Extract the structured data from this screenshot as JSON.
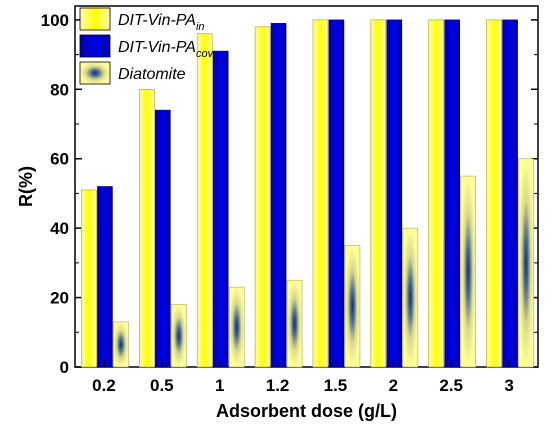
{
  "chart_data": {
    "type": "bar",
    "title": "",
    "xlabel": "Adsorbent dose (g/L)",
    "ylabel": "R(%)",
    "categories": [
      "0.2",
      "0.5",
      "1",
      "1.2",
      "1.5",
      "2",
      "2.5",
      "3"
    ],
    "ylim": [
      0,
      104
    ],
    "yticks": [
      0,
      20,
      40,
      60,
      80,
      100
    ],
    "series": [
      {
        "name": "DIT-Vin-PA",
        "subscript": "in",
        "color": "#ffff00",
        "values": [
          51,
          80,
          96,
          98,
          100,
          100,
          100,
          100
        ]
      },
      {
        "name": "DIT-Vin-PA",
        "subscript": "cov",
        "color": "#0000d4",
        "values": [
          52,
          74,
          91,
          99,
          100,
          100,
          100,
          100
        ]
      },
      {
        "name": "Diatomite",
        "subscript": "",
        "color": "#ffff66",
        "values": [
          13,
          18,
          23,
          25,
          35,
          40,
          55,
          60
        ]
      }
    ],
    "legend_position": "top-left",
    "grid": false
  }
}
